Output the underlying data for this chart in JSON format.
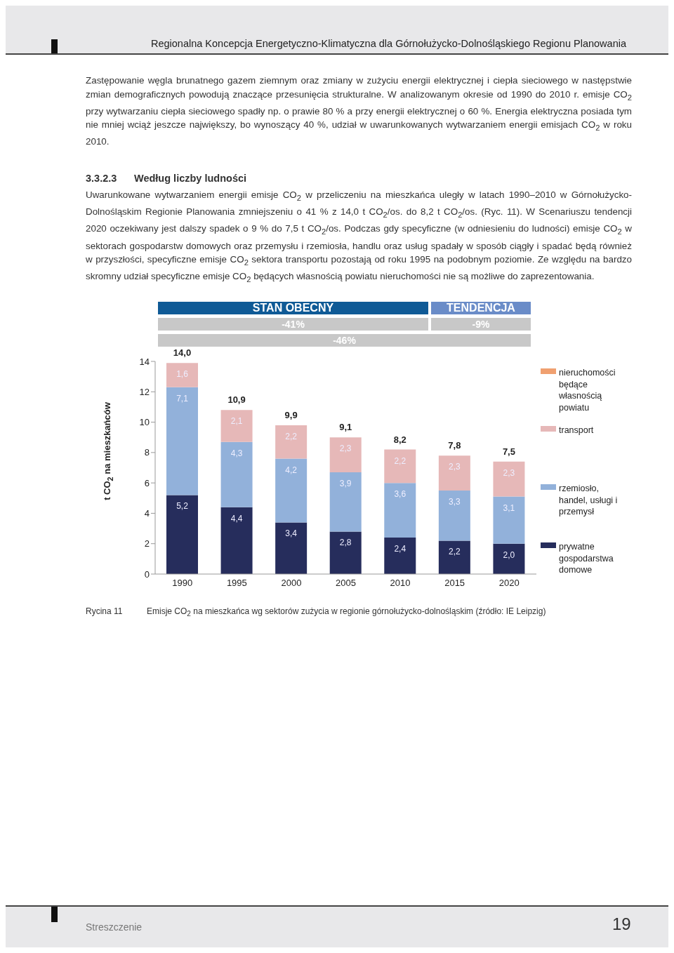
{
  "chart_data": {
    "type": "bar",
    "stacked": true,
    "title": "Regionalna Koncepcja Energetyczno-Klimatyczna dla Górnołużycko-Dolnośląskiego Regionu Planowania",
    "ylabel": "t CO$_{2}$ na mieszkańców",
    "categories": [
      "1990",
      "1995",
      "2000",
      "2005",
      "2010",
      "2015",
      "2020"
    ],
    "series": [
      {
        "name": "prywatne gospodarstwa domowe",
        "color": "#262d5c",
        "values": [
          5.2,
          4.4,
          3.4,
          2.8,
          2.4,
          2.2,
          2.0
        ],
        "value_labels": [
          "5,2",
          "4,4",
          "3,4",
          "2,8",
          "2,4",
          "2,2",
          "2,0"
        ]
      },
      {
        "name": "rzemiosło, handel, usługi i przemysł",
        "color": "#92b1da",
        "values": [
          7.1,
          4.3,
          4.2,
          3.9,
          3.6,
          3.3,
          3.1
        ],
        "value_labels": [
          "7,1",
          "4,3",
          "4,2",
          "3,9",
          "3,6",
          "3,3",
          "3,1"
        ]
      },
      {
        "name": "transport",
        "color": "#e6b8b8",
        "values": [
          1.6,
          2.1,
          2.2,
          2.3,
          2.2,
          2.3,
          2.3
        ],
        "value_labels": [
          "1,6",
          "2,1",
          "2,2",
          "2,3",
          "2,2",
          "2,3",
          "2,3"
        ]
      },
      {
        "name": "nieruchomości będące własnością powiatu",
        "color": "#f0a070",
        "values": [
          null,
          null,
          null,
          null,
          null,
          null,
          null
        ]
      }
    ],
    "totals": [
      "14,0",
      "10,9",
      "9,9",
      "9,1",
      "8,2",
      "7,8",
      "7,5"
    ],
    "ylim": [
      0,
      14
    ],
    "yticks": [
      0,
      2,
      4,
      6,
      8,
      10,
      12,
      14
    ],
    "grid": false,
    "legend": "right",
    "annotations": [
      "Zastępowanie węgla brunatnego gazem ziemnym oraz zmiany w zużyciu energii elektrycznej i ciepła sieciowego w następstwie zmian demograficznych powodują znaczące przesunięcia strukturalne. W analizowanym okresie od 1990 do 2010 r. emisje CO$_{2}$ przy wytwarzaniu ciepła sieciowego spadły np. o prawie 80 % a przy energii elektrycznej o 60 %. Energia elektryczna posiada tym nie mniej wciąż jeszcze największy, bo wynoszący 40 %, udział w uwarunkowanych wytwarzaniem energii emisjach CO$_{2}$ w roku 2010.",
      "3.3.2.3",
      "Według liczby ludności",
      "Uwarunkowane wytwarzaniem energii emisje CO$_{2}$ w przeliczeniu na mieszkańca uległy w latach 1990–2010 w Górnołużycko-Dolnośląskim Regionie Planowania zmniejszeniu o 41 % z 14,0 t CO$_{2}$/os. do 8,2 t CO$_{2}$/os. (Ryc. 11). W Scenariuszu tendencji 2020 oczekiwany jest dalszy spadek o 9 % do 7,5 t CO$_{2}$/os. Podczas gdy specyficzne (w odniesieniu do ludności) emisje CO$_{2}$ w sektorach gospodarstw domowych oraz przemysłu i rzemiosła, handlu oraz usług spadały w sposób ciągły i spadać będą również w przyszłości, specyficzne emisje CO$_{2}$ sektora transportu pozostają od roku 1995 na podobnym poziomie. Ze względu na bardzo skromny udział specyficzne emisje CO$_{2}$ będących własnością powiatu nieruchomości nie są możliwe do zaprezentowania.",
      "STAN OBECNY",
      "TENDENCJA",
      "-41%",
      "-9%",
      "-46%",
      "Rycina 11",
      "Emisje CO$_{2}$ na mieszkańca wg sektorów zużycia w regionie górnołużycko-dolnośląskim (źródło: IE Leipzig)",
      "Streszczenie",
      "19"
    ]
  }
}
